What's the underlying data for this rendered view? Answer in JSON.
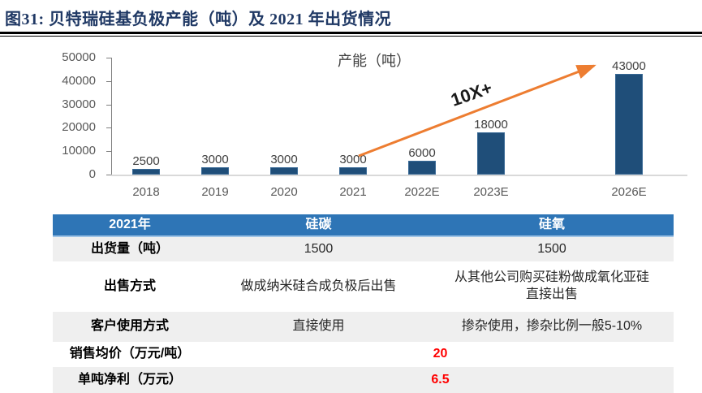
{
  "page": {
    "title": "图31:  贝特瑞硅基负极产能（吨）及 2021 年出货情况"
  },
  "chart_data": {
    "type": "bar",
    "title": "产能（吨）",
    "categories": [
      "2018",
      "2019",
      "2020",
      "2021",
      "2022E",
      "2023E",
      "",
      "2026E"
    ],
    "values": [
      2500,
      3000,
      3000,
      3000,
      6000,
      18000,
      null,
      43000
    ],
    "ylim": [
      0,
      50000
    ],
    "yticks": [
      "0",
      "10000",
      "20000",
      "30000",
      "40000",
      "50000"
    ],
    "legend": "none",
    "grid": "off",
    "annotation": {
      "text": "10X+"
    },
    "colors": {
      "bar": "#1F4E79",
      "arrow": "#ED7D31",
      "axis": "#7F7F7F",
      "baseline": "#D9D9D9",
      "data_label": "#404040",
      "tick_label": "#595959"
    }
  },
  "table": {
    "columns": [
      "2021年",
      "硅碳",
      "硅氧"
    ],
    "rows": [
      {
        "label": "出货量（吨）",
        "cells": [
          "1500",
          "1500"
        ]
      },
      {
        "label": "出售方式",
        "cells": [
          "做成纳米硅合成负极后出售",
          "从其他公司购买硅粉做成氧化亚硅直接出售"
        ]
      },
      {
        "label": "客户使用方式",
        "cells": [
          "直接使用",
          "掺杂使用，掺杂比例一般5-10%"
        ]
      },
      {
        "label": "销售均价（万元/吨）",
        "merged": "20",
        "highlight": true
      },
      {
        "label": "单吨净利（万元）",
        "merged": "6.5",
        "highlight": true
      }
    ],
    "colors": {
      "header_bg": "#2E75B6",
      "header_text": "#FFFFFF",
      "alt_row": "#EFEFEF",
      "highlight_value": "#FF0000"
    }
  }
}
